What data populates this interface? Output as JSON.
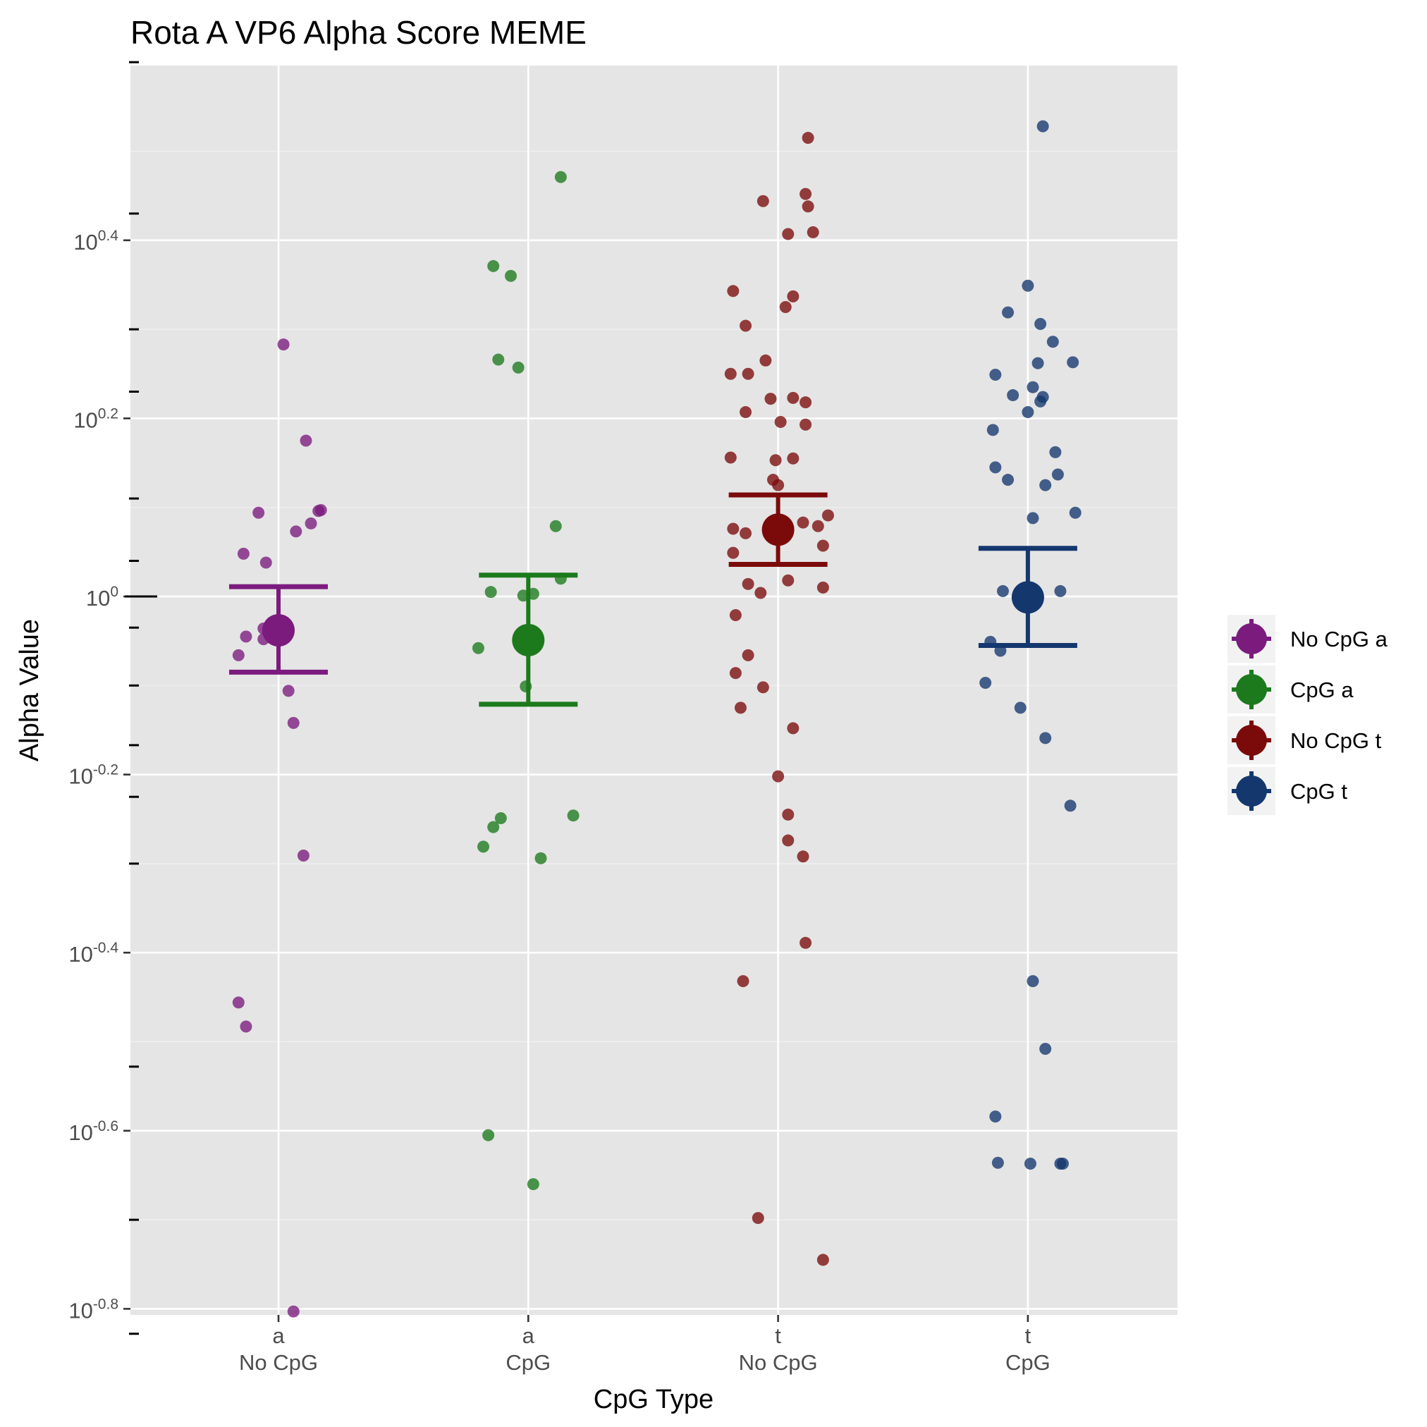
{
  "chart_data": {
    "type": "scatter",
    "title": "Rota A VP6 Alpha Score MEME",
    "xlabel": "CpG Type",
    "ylabel": "Alpha Value",
    "y_scale": "log10",
    "ylim_log10": [
      -0.8,
      0.8
    ],
    "y_ticks": [
      {
        "pre": "10",
        "exp": "0.4",
        "log10": 0.4
      },
      {
        "pre": "10",
        "exp": "0.2",
        "log10": 0.2
      },
      {
        "pre": "10",
        "exp": "0",
        "log10": 0.0
      },
      {
        "pre": "10",
        "exp": "-0.2",
        "log10": -0.2
      },
      {
        "pre": "10",
        "exp": "-0.4",
        "log10": -0.4
      },
      {
        "pre": "10",
        "exp": "-0.6",
        "log10": -0.6
      },
      {
        "pre": "10",
        "exp": "-0.8",
        "log10": -0.8
      }
    ],
    "categories": [
      {
        "line1": "a",
        "line2": "No CpG"
      },
      {
        "line1": "a",
        "line2": "CpG"
      },
      {
        "line1": "t",
        "line2": "No CpG"
      },
      {
        "line1": "t",
        "line2": "CpG"
      }
    ],
    "grid": true,
    "legend_position": "right",
    "series": [
      {
        "name": "No CpG a",
        "color": "#7b1b7e",
        "summary": {
          "mean_log10": -0.038,
          "lower_log10": -0.085,
          "upper_log10": 0.011
        },
        "points": [
          {
            "dx": 0.02,
            "log10": 0.283
          },
          {
            "dx": 0.11,
            "log10": 0.175
          },
          {
            "dx": -0.08,
            "log10": 0.094
          },
          {
            "dx": 0.16,
            "log10": 0.096
          },
          {
            "dx": 0.17,
            "log10": 0.097
          },
          {
            "dx": 0.13,
            "log10": 0.082
          },
          {
            "dx": 0.07,
            "log10": 0.073
          },
          {
            "dx": -0.14,
            "log10": 0.048
          },
          {
            "dx": -0.05,
            "log10": 0.038
          },
          {
            "dx": -0.06,
            "log10": -0.036
          },
          {
            "dx": -0.13,
            "log10": -0.045
          },
          {
            "dx": -0.06,
            "log10": -0.048
          },
          {
            "dx": -0.16,
            "log10": -0.066
          },
          {
            "dx": 0.04,
            "log10": -0.106
          },
          {
            "dx": 0.06,
            "log10": -0.142
          },
          {
            "dx": 0.1,
            "log10": -0.291
          },
          {
            "dx": -0.16,
            "log10": -0.456
          },
          {
            "dx": -0.13,
            "log10": -0.483
          },
          {
            "dx": 0.06,
            "log10": -0.803
          }
        ]
      },
      {
        "name": "CpG a",
        "color": "#1c7a1c",
        "summary": {
          "mean_log10": -0.049,
          "lower_log10": -0.121,
          "upper_log10": 0.024
        },
        "points": [
          {
            "dx": 0.13,
            "log10": 0.471
          },
          {
            "dx": -0.14,
            "log10": 0.371
          },
          {
            "dx": -0.07,
            "log10": 0.36
          },
          {
            "dx": -0.12,
            "log10": 0.266
          },
          {
            "dx": -0.04,
            "log10": 0.257
          },
          {
            "dx": 0.11,
            "log10": 0.079
          },
          {
            "dx": 0.13,
            "log10": 0.02
          },
          {
            "dx": -0.15,
            "log10": 0.005
          },
          {
            "dx": -0.02,
            "log10": 0.001
          },
          {
            "dx": 0.02,
            "log10": 0.003
          },
          {
            "dx": -0.2,
            "log10": -0.058
          },
          {
            "dx": -0.01,
            "log10": -0.101
          },
          {
            "dx": 0.18,
            "log10": -0.246
          },
          {
            "dx": -0.11,
            "log10": -0.249
          },
          {
            "dx": -0.14,
            "log10": -0.259
          },
          {
            "dx": -0.18,
            "log10": -0.281
          },
          {
            "dx": 0.05,
            "log10": -0.294
          },
          {
            "dx": -0.16,
            "log10": -0.605
          },
          {
            "dx": 0.02,
            "log10": -0.66
          }
        ]
      },
      {
        "name": "No CpG t",
        "color": "#7b0b0b",
        "summary": {
          "mean_log10": 0.075,
          "lower_log10": 0.036,
          "upper_log10": 0.114
        },
        "points": [
          {
            "dx": 0.12,
            "log10": 0.515
          },
          {
            "dx": -0.06,
            "log10": 0.444
          },
          {
            "dx": 0.11,
            "log10": 0.452
          },
          {
            "dx": 0.12,
            "log10": 0.438
          },
          {
            "dx": 0.14,
            "log10": 0.409
          },
          {
            "dx": 0.04,
            "log10": 0.407
          },
          {
            "dx": -0.18,
            "log10": 0.343
          },
          {
            "dx": 0.06,
            "log10": 0.337
          },
          {
            "dx": 0.03,
            "log10": 0.325
          },
          {
            "dx": -0.13,
            "log10": 0.304
          },
          {
            "dx": -0.05,
            "log10": 0.265
          },
          {
            "dx": -0.19,
            "log10": 0.25
          },
          {
            "dx": -0.12,
            "log10": 0.25
          },
          {
            "dx": -0.03,
            "log10": 0.222
          },
          {
            "dx": 0.06,
            "log10": 0.223
          },
          {
            "dx": 0.11,
            "log10": 0.218
          },
          {
            "dx": -0.13,
            "log10": 0.207
          },
          {
            "dx": 0.01,
            "log10": 0.196
          },
          {
            "dx": 0.11,
            "log10": 0.193
          },
          {
            "dx": -0.19,
            "log10": 0.156
          },
          {
            "dx": -0.01,
            "log10": 0.153
          },
          {
            "dx": 0.06,
            "log10": 0.155
          },
          {
            "dx": -0.02,
            "log10": 0.131
          },
          {
            "dx": 0.0,
            "log10": 0.125
          },
          {
            "dx": 0.2,
            "log10": 0.091
          },
          {
            "dx": 0.1,
            "log10": 0.083
          },
          {
            "dx": 0.16,
            "log10": 0.079
          },
          {
            "dx": -0.18,
            "log10": 0.076
          },
          {
            "dx": -0.13,
            "log10": 0.071
          },
          {
            "dx": 0.18,
            "log10": 0.057
          },
          {
            "dx": -0.18,
            "log10": 0.049
          },
          {
            "dx": 0.04,
            "log10": 0.018
          },
          {
            "dx": -0.12,
            "log10": 0.014
          },
          {
            "dx": 0.18,
            "log10": 0.01
          },
          {
            "dx": -0.07,
            "log10": 0.004
          },
          {
            "dx": -0.17,
            "log10": -0.021
          },
          {
            "dx": -0.12,
            "log10": -0.066
          },
          {
            "dx": -0.17,
            "log10": -0.086
          },
          {
            "dx": -0.06,
            "log10": -0.102
          },
          {
            "dx": -0.15,
            "log10": -0.125
          },
          {
            "dx": 0.06,
            "log10": -0.148
          },
          {
            "dx": 0.0,
            "log10": -0.202
          },
          {
            "dx": 0.04,
            "log10": -0.245
          },
          {
            "dx": 0.04,
            "log10": -0.274
          },
          {
            "dx": 0.1,
            "log10": -0.292
          },
          {
            "dx": 0.11,
            "log10": -0.389
          },
          {
            "dx": -0.14,
            "log10": -0.432
          },
          {
            "dx": -0.08,
            "log10": -0.698
          },
          {
            "dx": 0.18,
            "log10": -0.745
          }
        ]
      },
      {
        "name": "CpG t",
        "color": "#14376e",
        "summary": {
          "mean_log10": -0.001,
          "lower_log10": -0.055,
          "upper_log10": 0.054
        },
        "points": [
          {
            "dx": 0.06,
            "log10": 0.528
          },
          {
            "dx": 0.0,
            "log10": 0.349
          },
          {
            "dx": -0.08,
            "log10": 0.319
          },
          {
            "dx": 0.05,
            "log10": 0.306
          },
          {
            "dx": 0.1,
            "log10": 0.286
          },
          {
            "dx": 0.18,
            "log10": 0.263
          },
          {
            "dx": 0.04,
            "log10": 0.262
          },
          {
            "dx": -0.13,
            "log10": 0.249
          },
          {
            "dx": 0.02,
            "log10": 0.235
          },
          {
            "dx": -0.06,
            "log10": 0.226
          },
          {
            "dx": 0.06,
            "log10": 0.224
          },
          {
            "dx": 0.05,
            "log10": 0.219
          },
          {
            "dx": 0.0,
            "log10": 0.207
          },
          {
            "dx": -0.14,
            "log10": 0.187
          },
          {
            "dx": 0.11,
            "log10": 0.162
          },
          {
            "dx": -0.13,
            "log10": 0.145
          },
          {
            "dx": 0.12,
            "log10": 0.137
          },
          {
            "dx": -0.08,
            "log10": 0.131
          },
          {
            "dx": 0.07,
            "log10": 0.125
          },
          {
            "dx": 0.19,
            "log10": 0.094
          },
          {
            "dx": 0.02,
            "log10": 0.088
          },
          {
            "dx": -0.1,
            "log10": 0.006
          },
          {
            "dx": 0.13,
            "log10": 0.006
          },
          {
            "dx": -0.15,
            "log10": -0.051
          },
          {
            "dx": -0.11,
            "log10": -0.061
          },
          {
            "dx": -0.17,
            "log10": -0.097
          },
          {
            "dx": -0.03,
            "log10": -0.125
          },
          {
            "dx": 0.07,
            "log10": -0.159
          },
          {
            "dx": 0.17,
            "log10": -0.235
          },
          {
            "dx": 0.02,
            "log10": -0.432
          },
          {
            "dx": 0.07,
            "log10": -0.508
          },
          {
            "dx": -0.13,
            "log10": -0.584
          },
          {
            "dx": -0.12,
            "log10": -0.636
          },
          {
            "dx": 0.01,
            "log10": -0.637
          },
          {
            "dx": 0.13,
            "log10": -0.637
          },
          {
            "dx": 0.14,
            "log10": -0.637
          }
        ]
      }
    ]
  }
}
